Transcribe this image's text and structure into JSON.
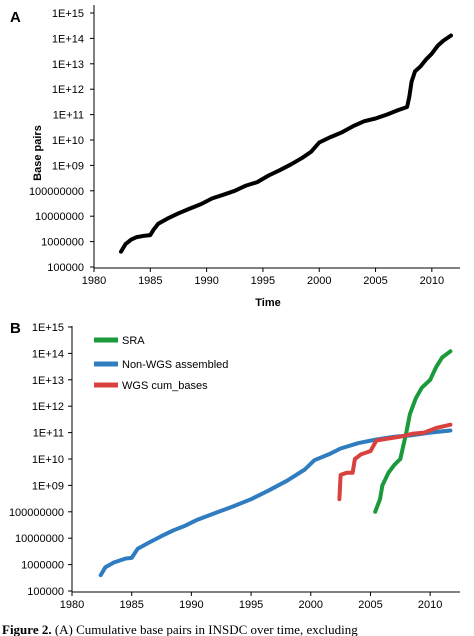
{
  "chart_data": [
    {
      "panel": "A",
      "type": "line",
      "xlabel": "Time",
      "ylabel": "Base pairs",
      "x_ticks": [
        1980,
        1985,
        1990,
        1995,
        2000,
        2005,
        2010
      ],
      "y_ticks": [
        "100000",
        "1000000",
        "10000000",
        "100000000",
        "1E+09",
        "1E+10",
        "1E+11",
        "1E+12",
        "1E+13",
        "1E+14",
        "1E+15"
      ],
      "xlim": [
        1980,
        2012.5
      ],
      "ylim": [
        100000,
        1000000000000000.0
      ],
      "y_scale": "log",
      "grid": false,
      "series": [
        {
          "color": "#000000",
          "points": [
            [
              1982.4,
              400000
            ],
            [
              1982.8,
              800000
            ],
            [
              1983.3,
              1200000
            ],
            [
              1983.8,
              1500000
            ],
            [
              1984.5,
              1700000
            ],
            [
              1985.0,
              1800000
            ],
            [
              1985.3,
              3000000
            ],
            [
              1985.7,
              5000000
            ],
            [
              1986.5,
              8000000
            ],
            [
              1987.5,
              13000000
            ],
            [
              1988.5,
              20000000
            ],
            [
              1989.5,
              30000000
            ],
            [
              1990.5,
              50000000
            ],
            [
              1991.5,
              70000000
            ],
            [
              1992.5,
              100000000
            ],
            [
              1993.5,
              160000000
            ],
            [
              1994.5,
              220000000
            ],
            [
              1995.5,
              400000000
            ],
            [
              1996.5,
              650000000
            ],
            [
              1997.5,
              1100000000
            ],
            [
              1998.5,
              2000000000
            ],
            [
              1999.3,
              3500000000
            ],
            [
              2000.0,
              8000000000
            ],
            [
              2001.0,
              13000000000
            ],
            [
              2002.0,
              20000000000
            ],
            [
              2003.0,
              35000000000
            ],
            [
              2004.0,
              55000000000
            ],
            [
              2005.0,
              70000000000
            ],
            [
              2006.0,
              100000000000
            ],
            [
              2007.0,
              150000000000
            ],
            [
              2007.8,
              200000000000
            ],
            [
              2008.0,
              500000000000
            ],
            [
              2008.2,
              2000000000000
            ],
            [
              2008.5,
              5000000000000
            ],
            [
              2009.0,
              8000000000000
            ],
            [
              2009.5,
              15000000000000
            ],
            [
              2010.0,
              25000000000000
            ],
            [
              2010.5,
              50000000000000
            ],
            [
              2011.0,
              80000000000000
            ],
            [
              2011.7,
              130000000000000
            ]
          ]
        }
      ]
    },
    {
      "panel": "B",
      "type": "line",
      "x_ticks": [
        1980,
        1985,
        1990,
        1995,
        2000,
        2005,
        2010
      ],
      "y_ticks": [
        "100000",
        "1000000",
        "10000000",
        "100000000",
        "1E+09",
        "1E+10",
        "1E+11",
        "1E+12",
        "1E+13",
        "1E+14",
        "1E+15"
      ],
      "xlim": [
        1980,
        2012.5
      ],
      "ylim": [
        100000,
        1000000000000000.0
      ],
      "y_scale": "log",
      "grid": false,
      "legend": "top-left",
      "series": [
        {
          "name": "SRA",
          "color": "#1a9a3a",
          "points": [
            [
              2005.4,
              100000000
            ],
            [
              2005.8,
              300000000
            ],
            [
              2006.0,
              1000000000
            ],
            [
              2006.5,
              3000000000
            ],
            [
              2007.0,
              6000000000
            ],
            [
              2007.5,
              10000000000
            ],
            [
              2008.0,
              100000000000
            ],
            [
              2008.3,
              500000000000
            ],
            [
              2008.8,
              2000000000000
            ],
            [
              2009.3,
              5000000000000
            ],
            [
              2010.0,
              10000000000000
            ],
            [
              2010.5,
              30000000000000
            ],
            [
              2011.0,
              70000000000000
            ],
            [
              2011.7,
              120000000000000
            ]
          ]
        },
        {
          "name": "Non-WGS assembled",
          "color": "#2f7cc0",
          "points": [
            [
              1982.4,
              400000
            ],
            [
              1982.8,
              800000
            ],
            [
              1983.5,
              1200000
            ],
            [
              1984.5,
              1700000
            ],
            [
              1985.0,
              1800000
            ],
            [
              1985.5,
              4000000
            ],
            [
              1986.5,
              7000000
            ],
            [
              1987.5,
              12000000
            ],
            [
              1988.5,
              20000000
            ],
            [
              1989.5,
              30000000
            ],
            [
              1990.5,
              50000000
            ],
            [
              1992.0,
              90000000
            ],
            [
              1993.5,
              160000000
            ],
            [
              1995.0,
              300000000
            ],
            [
              1996.5,
              650000000
            ],
            [
              1998.0,
              1500000000
            ],
            [
              1999.5,
              4000000000
            ],
            [
              2000.3,
              9000000000
            ],
            [
              2001.5,
              15000000000
            ],
            [
              2002.5,
              25000000000
            ],
            [
              2004.0,
              40000000000
            ],
            [
              2005.5,
              55000000000
            ],
            [
              2007.0,
              70000000000
            ],
            [
              2008.5,
              80000000000
            ],
            [
              2010.0,
              100000000000
            ],
            [
              2011.7,
              120000000000
            ]
          ]
        },
        {
          "name": "WGS cum_bases",
          "color": "#d9413f",
          "points": [
            [
              2002.4,
              300000000
            ],
            [
              2002.5,
              2500000000
            ],
            [
              2003.0,
              3000000000
            ],
            [
              2003.5,
              3000000000
            ],
            [
              2003.7,
              10000000000
            ],
            [
              2004.2,
              15000000000
            ],
            [
              2005.0,
              20000000000
            ],
            [
              2005.5,
              50000000000
            ],
            [
              2006.5,
              60000000000
            ],
            [
              2007.5,
              70000000000
            ],
            [
              2008.5,
              90000000000
            ],
            [
              2009.5,
              100000000000
            ],
            [
              2010.5,
              150000000000
            ],
            [
              2011.7,
              200000000000
            ]
          ]
        }
      ]
    }
  ],
  "caption": {
    "bold": "Figure 2.",
    "text": " (A) Cumulative base pairs in INSDC over time, excluding"
  }
}
